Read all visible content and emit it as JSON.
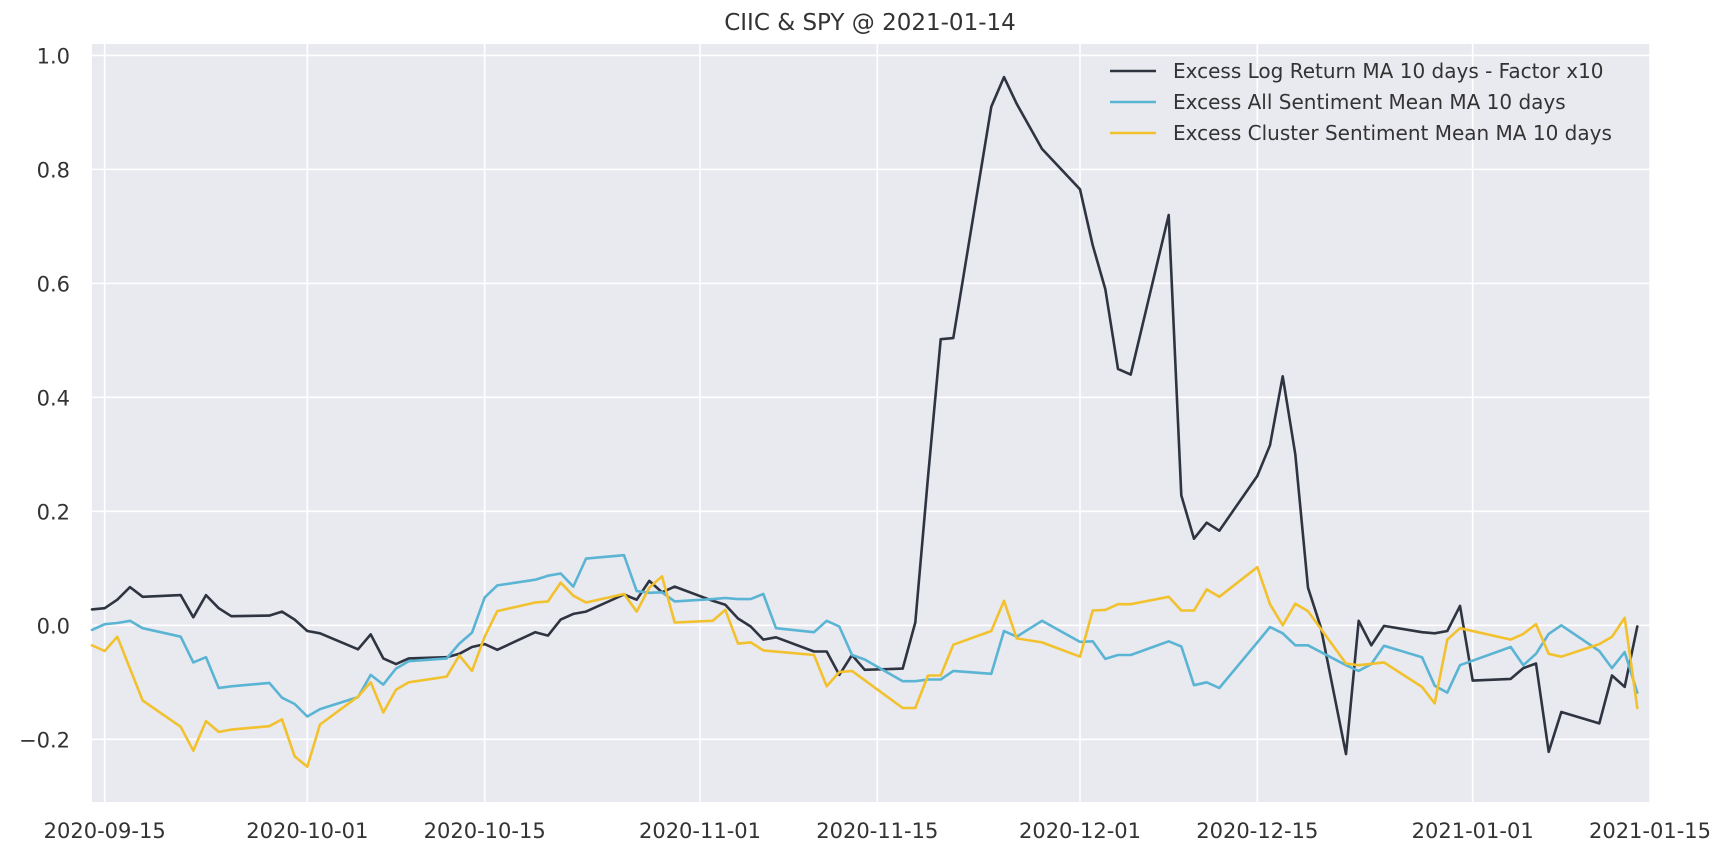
{
  "chart_data": {
    "type": "line",
    "title": "CIIC & SPY @ 2021-01-14",
    "xlabel": "",
    "ylabel": "",
    "x_axis_type": "date",
    "xlim": [
      "2020-09-14",
      "2021-01-15"
    ],
    "ylim": [
      -0.31,
      1.02
    ],
    "x_ticks": [
      "2020-09-15",
      "2020-10-01",
      "2020-10-15",
      "2020-11-01",
      "2020-11-15",
      "2020-12-01",
      "2020-12-15",
      "2021-01-01",
      "2021-01-15"
    ],
    "y_ticks": [
      -0.2,
      0.0,
      0.2,
      0.4,
      0.6,
      0.8,
      1.0
    ],
    "y_tick_labels": [
      "−0.2",
      "0.0",
      "0.2",
      "0.4",
      "0.6",
      "0.8",
      "1.0"
    ],
    "grid": true,
    "legend_position": "top-right",
    "background": "#E9E9F0",
    "series": [
      {
        "name": "Excess Log Return MA 10 days - Factor x10",
        "color": "#2E3440",
        "points": [
          [
            "2020-09-14",
            0.028
          ],
          [
            "2020-09-15",
            0.03
          ],
          [
            "2020-09-16",
            0.045
          ],
          [
            "2020-09-17",
            0.067
          ],
          [
            "2020-09-18",
            0.05
          ],
          [
            "2020-09-21",
            0.053
          ],
          [
            "2020-09-22",
            0.014
          ],
          [
            "2020-09-23",
            0.053
          ],
          [
            "2020-09-24",
            0.03
          ],
          [
            "2020-09-25",
            0.016
          ],
          [
            "2020-09-28",
            0.017
          ],
          [
            "2020-09-29",
            0.024
          ],
          [
            "2020-09-30",
            0.01
          ],
          [
            "2020-10-01",
            -0.01
          ],
          [
            "2020-10-02",
            -0.014
          ],
          [
            "2020-10-05",
            -0.042
          ],
          [
            "2020-10-06",
            -0.016
          ],
          [
            "2020-10-07",
            -0.058
          ],
          [
            "2020-10-08",
            -0.068
          ],
          [
            "2020-10-09",
            -0.058
          ],
          [
            "2020-10-12",
            -0.056
          ],
          [
            "2020-10-13",
            -0.05
          ],
          [
            "2020-10-14",
            -0.038
          ],
          [
            "2020-10-15",
            -0.033
          ],
          [
            "2020-10-16",
            -0.043
          ],
          [
            "2020-10-19",
            -0.012
          ],
          [
            "2020-10-20",
            -0.018
          ],
          [
            "2020-10-21",
            0.01
          ],
          [
            "2020-10-22",
            0.02
          ],
          [
            "2020-10-23",
            0.024
          ],
          [
            "2020-10-26",
            0.054
          ],
          [
            "2020-10-27",
            0.045
          ],
          [
            "2020-10-28",
            0.078
          ],
          [
            "2020-10-29",
            0.058
          ],
          [
            "2020-10-30",
            0.068
          ],
          [
            "2020-11-02",
            0.043
          ],
          [
            "2020-11-03",
            0.036
          ],
          [
            "2020-11-04",
            0.012
          ],
          [
            "2020-11-05",
            -0.002
          ],
          [
            "2020-11-06",
            -0.025
          ],
          [
            "2020-11-07",
            -0.021
          ],
          [
            "2020-11-10",
            -0.046
          ],
          [
            "2020-11-11",
            -0.046
          ],
          [
            "2020-11-12",
            -0.087
          ],
          [
            "2020-11-13",
            -0.052
          ],
          [
            "2020-11-14",
            -0.078
          ],
          [
            "2020-11-17",
            -0.076
          ],
          [
            "2020-11-18",
            0.005
          ],
          [
            "2020-11-19",
            0.26
          ],
          [
            "2020-11-20",
            0.502
          ],
          [
            "2020-11-21",
            0.504
          ],
          [
            "2020-11-24",
            0.91
          ],
          [
            "2020-11-25",
            0.962
          ],
          [
            "2020-11-26",
            0.915
          ],
          [
            "2020-11-28",
            0.836
          ],
          [
            "2020-12-01",
            0.765
          ],
          [
            "2020-12-02",
            0.667
          ],
          [
            "2020-12-03",
            0.59
          ],
          [
            "2020-12-04",
            0.45
          ],
          [
            "2020-12-05",
            0.44
          ],
          [
            "2020-12-08",
            0.72
          ],
          [
            "2020-12-09",
            0.228
          ],
          [
            "2020-12-10",
            0.152
          ],
          [
            "2020-12-11",
            0.18
          ],
          [
            "2020-12-12",
            0.166
          ],
          [
            "2020-12-15",
            0.262
          ],
          [
            "2020-12-16",
            0.316
          ],
          [
            "2020-12-17",
            0.437
          ],
          [
            "2020-12-18",
            0.3
          ],
          [
            "2020-12-19",
            0.066
          ],
          [
            "2020-12-20",
            -0.003
          ],
          [
            "2020-12-22",
            -0.226
          ],
          [
            "2020-12-23",
            0.008
          ],
          [
            "2020-12-24",
            -0.035
          ],
          [
            "2020-12-25",
            -0.001
          ],
          [
            "2020-12-28",
            -0.012
          ],
          [
            "2020-12-29",
            -0.014
          ],
          [
            "2020-12-30",
            -0.01
          ],
          [
            "2020-12-31",
            0.034
          ],
          [
            "2021-01-01",
            -0.097
          ],
          [
            "2021-01-04",
            -0.094
          ],
          [
            "2021-01-05",
            -0.075
          ],
          [
            "2021-01-06",
            -0.067
          ],
          [
            "2021-01-07",
            -0.222
          ],
          [
            "2021-01-08",
            -0.152
          ],
          [
            "2021-01-11",
            -0.172
          ],
          [
            "2021-01-12",
            -0.088
          ],
          [
            "2021-01-13",
            -0.108
          ],
          [
            "2021-01-14",
            -0.002
          ]
        ]
      },
      {
        "name": "Excess All Sentiment Mean MA 10 days",
        "color": "#5AB4D3",
        "points": [
          [
            "2020-09-14",
            -0.008
          ],
          [
            "2020-09-15",
            0.002
          ],
          [
            "2020-09-16",
            0.004
          ],
          [
            "2020-09-17",
            0.008
          ],
          [
            "2020-09-18",
            -0.005
          ],
          [
            "2020-09-21",
            -0.02
          ],
          [
            "2020-09-22",
            -0.065
          ],
          [
            "2020-09-23",
            -0.056
          ],
          [
            "2020-09-24",
            -0.11
          ],
          [
            "2020-09-25",
            -0.107
          ],
          [
            "2020-09-28",
            -0.101
          ],
          [
            "2020-09-29",
            -0.127
          ],
          [
            "2020-09-30",
            -0.138
          ],
          [
            "2020-10-01",
            -0.16
          ],
          [
            "2020-10-02",
            -0.147
          ],
          [
            "2020-10-05",
            -0.126
          ],
          [
            "2020-10-06",
            -0.087
          ],
          [
            "2020-10-07",
            -0.104
          ],
          [
            "2020-10-08",
            -0.076
          ],
          [
            "2020-10-09",
            -0.063
          ],
          [
            "2020-10-12",
            -0.058
          ],
          [
            "2020-10-13",
            -0.032
          ],
          [
            "2020-10-14",
            -0.013
          ],
          [
            "2020-10-15",
            0.049
          ],
          [
            "2020-10-16",
            0.07
          ],
          [
            "2020-10-19",
            0.08
          ],
          [
            "2020-10-20",
            0.087
          ],
          [
            "2020-10-21",
            0.091
          ],
          [
            "2020-10-22",
            0.068
          ],
          [
            "2020-10-23",
            0.117
          ],
          [
            "2020-10-26",
            0.123
          ],
          [
            "2020-10-27",
            0.06
          ],
          [
            "2020-10-28",
            0.057
          ],
          [
            "2020-10-29",
            0.058
          ],
          [
            "2020-10-30",
            0.042
          ],
          [
            "2020-11-02",
            0.046
          ],
          [
            "2020-11-03",
            0.048
          ],
          [
            "2020-11-04",
            0.046
          ],
          [
            "2020-11-05",
            0.046
          ],
          [
            "2020-11-06",
            0.055
          ],
          [
            "2020-11-07",
            -0.005
          ],
          [
            "2020-11-10",
            -0.012
          ],
          [
            "2020-11-11",
            0.008
          ],
          [
            "2020-11-12",
            -0.002
          ],
          [
            "2020-11-13",
            -0.052
          ],
          [
            "2020-11-14",
            -0.06
          ],
          [
            "2020-11-17",
            -0.098
          ],
          [
            "2020-11-18",
            -0.098
          ],
          [
            "2020-11-19",
            -0.095
          ],
          [
            "2020-11-20",
            -0.095
          ],
          [
            "2020-11-21",
            -0.08
          ],
          [
            "2020-11-24",
            -0.085
          ],
          [
            "2020-11-25",
            -0.01
          ],
          [
            "2020-11-26",
            -0.02
          ],
          [
            "2020-11-28",
            0.008
          ],
          [
            "2020-12-01",
            -0.029
          ],
          [
            "2020-12-02",
            -0.028
          ],
          [
            "2020-12-03",
            -0.059
          ],
          [
            "2020-12-04",
            -0.052
          ],
          [
            "2020-12-05",
            -0.052
          ],
          [
            "2020-12-08",
            -0.028
          ],
          [
            "2020-12-09",
            -0.037
          ],
          [
            "2020-12-10",
            -0.105
          ],
          [
            "2020-12-11",
            -0.1
          ],
          [
            "2020-12-12",
            -0.11
          ],
          [
            "2020-12-15",
            -0.03
          ],
          [
            "2020-12-16",
            -0.003
          ],
          [
            "2020-12-17",
            -0.014
          ],
          [
            "2020-12-18",
            -0.035
          ],
          [
            "2020-12-19",
            -0.035
          ],
          [
            "2020-12-22",
            -0.07
          ],
          [
            "2020-12-23",
            -0.08
          ],
          [
            "2020-12-24",
            -0.068
          ],
          [
            "2020-12-25",
            -0.036
          ],
          [
            "2020-12-28",
            -0.056
          ],
          [
            "2020-12-29",
            -0.106
          ],
          [
            "2020-12-30",
            -0.118
          ],
          [
            "2020-12-31",
            -0.07
          ],
          [
            "2021-01-04",
            -0.038
          ],
          [
            "2021-01-05",
            -0.07
          ],
          [
            "2021-01-06",
            -0.05
          ],
          [
            "2021-01-07",
            -0.015
          ],
          [
            "2021-01-08",
            0.0
          ],
          [
            "2021-01-11",
            -0.045
          ],
          [
            "2021-01-12",
            -0.075
          ],
          [
            "2021-01-13",
            -0.047
          ],
          [
            "2021-01-14",
            -0.118
          ]
        ]
      },
      {
        "name": "Excess Cluster Sentiment Mean MA 10 days",
        "color": "#F2C12E",
        "points": [
          [
            "2020-09-14",
            -0.035
          ],
          [
            "2020-09-15",
            -0.045
          ],
          [
            "2020-09-16",
            -0.02
          ],
          [
            "2020-09-18",
            -0.132
          ],
          [
            "2020-09-21",
            -0.178
          ],
          [
            "2020-09-22",
            -0.22
          ],
          [
            "2020-09-23",
            -0.168
          ],
          [
            "2020-09-24",
            -0.187
          ],
          [
            "2020-09-25",
            -0.183
          ],
          [
            "2020-09-28",
            -0.177
          ],
          [
            "2020-09-29",
            -0.165
          ],
          [
            "2020-09-30",
            -0.23
          ],
          [
            "2020-10-01",
            -0.248
          ],
          [
            "2020-10-02",
            -0.174
          ],
          [
            "2020-10-05",
            -0.125
          ],
          [
            "2020-10-06",
            -0.1
          ],
          [
            "2020-10-07",
            -0.153
          ],
          [
            "2020-10-08",
            -0.113
          ],
          [
            "2020-10-09",
            -0.1
          ],
          [
            "2020-10-12",
            -0.09
          ],
          [
            "2020-10-13",
            -0.053
          ],
          [
            "2020-10-14",
            -0.08
          ],
          [
            "2020-10-15",
            -0.02
          ],
          [
            "2020-10-16",
            0.025
          ],
          [
            "2020-10-19",
            0.04
          ],
          [
            "2020-10-20",
            0.042
          ],
          [
            "2020-10-21",
            0.075
          ],
          [
            "2020-10-22",
            0.052
          ],
          [
            "2020-10-23",
            0.04
          ],
          [
            "2020-10-26",
            0.055
          ],
          [
            "2020-10-27",
            0.024
          ],
          [
            "2020-10-28",
            0.066
          ],
          [
            "2020-10-29",
            0.086
          ],
          [
            "2020-10-30",
            0.005
          ],
          [
            "2020-11-02",
            0.008
          ],
          [
            "2020-11-03",
            0.027
          ],
          [
            "2020-11-04",
            -0.032
          ],
          [
            "2020-11-05",
            -0.03
          ],
          [
            "2020-11-06",
            -0.044
          ],
          [
            "2020-11-10",
            -0.052
          ],
          [
            "2020-11-11",
            -0.107
          ],
          [
            "2020-11-12",
            -0.082
          ],
          [
            "2020-11-13",
            -0.08
          ],
          [
            "2020-11-17",
            -0.145
          ],
          [
            "2020-11-18",
            -0.145
          ],
          [
            "2020-11-19",
            -0.088
          ],
          [
            "2020-11-20",
            -0.088
          ],
          [
            "2020-11-21",
            -0.034
          ],
          [
            "2020-11-24",
            -0.01
          ],
          [
            "2020-11-25",
            0.043
          ],
          [
            "2020-11-26",
            -0.023
          ],
          [
            "2020-11-28",
            -0.03
          ],
          [
            "2020-12-01",
            -0.055
          ],
          [
            "2020-12-02",
            0.026
          ],
          [
            "2020-12-03",
            0.027
          ],
          [
            "2020-12-04",
            0.037
          ],
          [
            "2020-12-05",
            0.037
          ],
          [
            "2020-12-08",
            0.05
          ],
          [
            "2020-12-09",
            0.026
          ],
          [
            "2020-12-10",
            0.026
          ],
          [
            "2020-12-11",
            0.063
          ],
          [
            "2020-12-12",
            0.05
          ],
          [
            "2020-12-15",
            0.102
          ],
          [
            "2020-12-16",
            0.037
          ],
          [
            "2020-12-17",
            0.0
          ],
          [
            "2020-12-18",
            0.038
          ],
          [
            "2020-12-19",
            0.025
          ],
          [
            "2020-12-22",
            -0.067
          ],
          [
            "2020-12-23",
            -0.07
          ],
          [
            "2020-12-25",
            -0.065
          ],
          [
            "2020-12-28",
            -0.108
          ],
          [
            "2020-12-29",
            -0.137
          ],
          [
            "2020-12-30",
            -0.025
          ],
          [
            "2020-12-31",
            -0.005
          ],
          [
            "2021-01-04",
            -0.025
          ],
          [
            "2021-01-05",
            -0.015
          ],
          [
            "2021-01-06",
            0.002
          ],
          [
            "2021-01-07",
            -0.05
          ],
          [
            "2021-01-08",
            -0.055
          ],
          [
            "2021-01-11",
            -0.033
          ],
          [
            "2021-01-12",
            -0.02
          ],
          [
            "2021-01-13",
            0.013
          ],
          [
            "2021-01-14",
            -0.145
          ]
        ]
      }
    ]
  }
}
